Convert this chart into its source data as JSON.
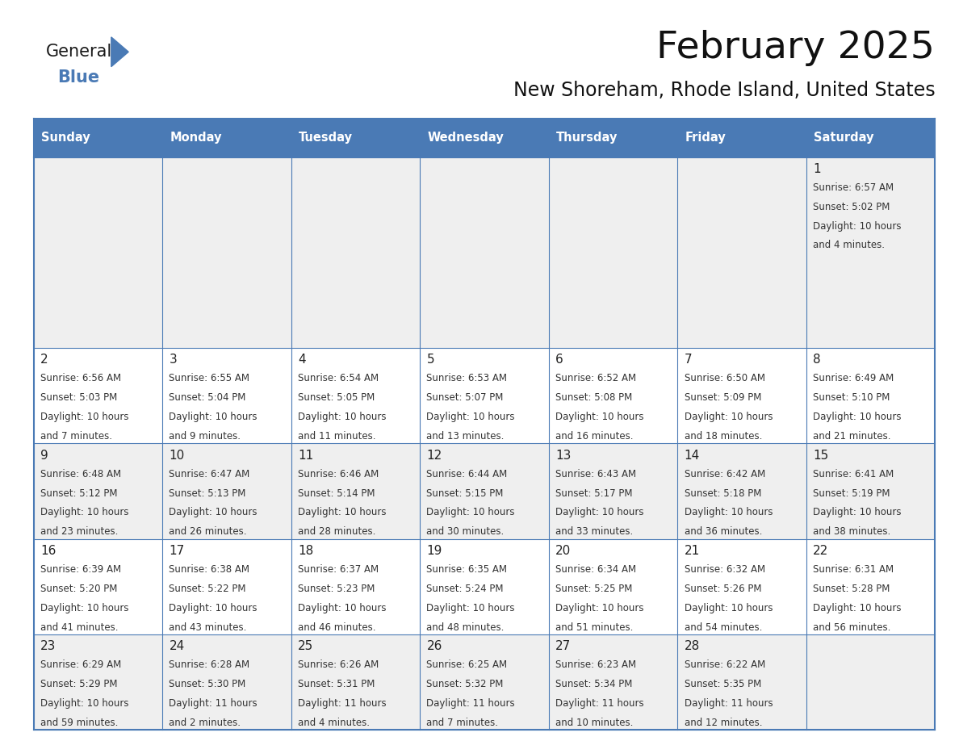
{
  "title": "February 2025",
  "subtitle": "New Shoreham, Rhode Island, United States",
  "header_color": "#4a7ab5",
  "header_text_color": "#FFFFFF",
  "days_of_week": [
    "Sunday",
    "Monday",
    "Tuesday",
    "Wednesday",
    "Thursday",
    "Friday",
    "Saturday"
  ],
  "cell_bg": "#EFEFEF",
  "cell_bg_white": "#FFFFFF",
  "border_color": "#4a7ab5",
  "text_color": "#333333",
  "day_num_color": "#222222",
  "logo_general_color": "#1a1a1a",
  "logo_blue_color": "#4a7ab5",
  "logo_triangle_color": "#4a7ab5",
  "calendar_data": [
    [
      null,
      null,
      null,
      null,
      null,
      null,
      {
        "day": 1,
        "rise": "6:57 AM",
        "set": "5:02 PM",
        "hours": 10,
        "mins": 4
      }
    ],
    [
      {
        "day": 2,
        "rise": "6:56 AM",
        "set": "5:03 PM",
        "hours": 10,
        "mins": 7
      },
      {
        "day": 3,
        "rise": "6:55 AM",
        "set": "5:04 PM",
        "hours": 10,
        "mins": 9
      },
      {
        "day": 4,
        "rise": "6:54 AM",
        "set": "5:05 PM",
        "hours": 10,
        "mins": 11
      },
      {
        "day": 5,
        "rise": "6:53 AM",
        "set": "5:07 PM",
        "hours": 10,
        "mins": 13
      },
      {
        "day": 6,
        "rise": "6:52 AM",
        "set": "5:08 PM",
        "hours": 10,
        "mins": 16
      },
      {
        "day": 7,
        "rise": "6:50 AM",
        "set": "5:09 PM",
        "hours": 10,
        "mins": 18
      },
      {
        "day": 8,
        "rise": "6:49 AM",
        "set": "5:10 PM",
        "hours": 10,
        "mins": 21
      }
    ],
    [
      {
        "day": 9,
        "rise": "6:48 AM",
        "set": "5:12 PM",
        "hours": 10,
        "mins": 23
      },
      {
        "day": 10,
        "rise": "6:47 AM",
        "set": "5:13 PM",
        "hours": 10,
        "mins": 26
      },
      {
        "day": 11,
        "rise": "6:46 AM",
        "set": "5:14 PM",
        "hours": 10,
        "mins": 28
      },
      {
        "day": 12,
        "rise": "6:44 AM",
        "set": "5:15 PM",
        "hours": 10,
        "mins": 30
      },
      {
        "day": 13,
        "rise": "6:43 AM",
        "set": "5:17 PM",
        "hours": 10,
        "mins": 33
      },
      {
        "day": 14,
        "rise": "6:42 AM",
        "set": "5:18 PM",
        "hours": 10,
        "mins": 36
      },
      {
        "day": 15,
        "rise": "6:41 AM",
        "set": "5:19 PM",
        "hours": 10,
        "mins": 38
      }
    ],
    [
      {
        "day": 16,
        "rise": "6:39 AM",
        "set": "5:20 PM",
        "hours": 10,
        "mins": 41
      },
      {
        "day": 17,
        "rise": "6:38 AM",
        "set": "5:22 PM",
        "hours": 10,
        "mins": 43
      },
      {
        "day": 18,
        "rise": "6:37 AM",
        "set": "5:23 PM",
        "hours": 10,
        "mins": 46
      },
      {
        "day": 19,
        "rise": "6:35 AM",
        "set": "5:24 PM",
        "hours": 10,
        "mins": 48
      },
      {
        "day": 20,
        "rise": "6:34 AM",
        "set": "5:25 PM",
        "hours": 10,
        "mins": 51
      },
      {
        "day": 21,
        "rise": "6:32 AM",
        "set": "5:26 PM",
        "hours": 10,
        "mins": 54
      },
      {
        "day": 22,
        "rise": "6:31 AM",
        "set": "5:28 PM",
        "hours": 10,
        "mins": 56
      }
    ],
    [
      {
        "day": 23,
        "rise": "6:29 AM",
        "set": "5:29 PM",
        "hours": 10,
        "mins": 59
      },
      {
        "day": 24,
        "rise": "6:28 AM",
        "set": "5:30 PM",
        "hours": 11,
        "mins": 2
      },
      {
        "day": 25,
        "rise": "6:26 AM",
        "set": "5:31 PM",
        "hours": 11,
        "mins": 4
      },
      {
        "day": 26,
        "rise": "6:25 AM",
        "set": "5:32 PM",
        "hours": 11,
        "mins": 7
      },
      {
        "day": 27,
        "rise": "6:23 AM",
        "set": "5:34 PM",
        "hours": 11,
        "mins": 10
      },
      {
        "day": 28,
        "rise": "6:22 AM",
        "set": "5:35 PM",
        "hours": 11,
        "mins": 12
      },
      null
    ]
  ],
  "fig_width": 11.88,
  "fig_height": 9.18,
  "dpi": 100
}
